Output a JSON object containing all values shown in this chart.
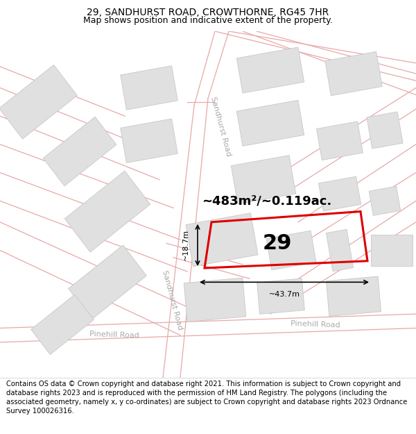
{
  "title": "29, SANDHURST ROAD, CROWTHORNE, RG45 7HR",
  "subtitle": "Map shows position and indicative extent of the property.",
  "footer": "Contains OS data © Crown copyright and database right 2021. This information is subject to Crown copyright and database rights 2023 and is reproduced with the permission of HM Land Registry. The polygons (including the associated geometry, namely x, y co-ordinates) are subject to Crown copyright and database rights 2023 Ordnance Survey 100026316.",
  "area_text": "~483m²/~0.119ac.",
  "property_number": "29",
  "dim_width": "~43.7m",
  "dim_height": "~18.7m",
  "road_label_upper": "Sandhurst Road",
  "road_label_lower": "Sandhurst Road",
  "road_label_pinehill_left": "Pinehill Road",
  "road_label_pinehill_right": "Pinehill Road",
  "title_fontsize": 10,
  "subtitle_fontsize": 9,
  "footer_fontsize": 7.2,
  "road_color": "#e8a8a8",
  "building_fill": "#e0e0e0",
  "building_edge": "#c8c8c8",
  "road_label_color": "#aaaaaa",
  "property_color": "#dd0000"
}
